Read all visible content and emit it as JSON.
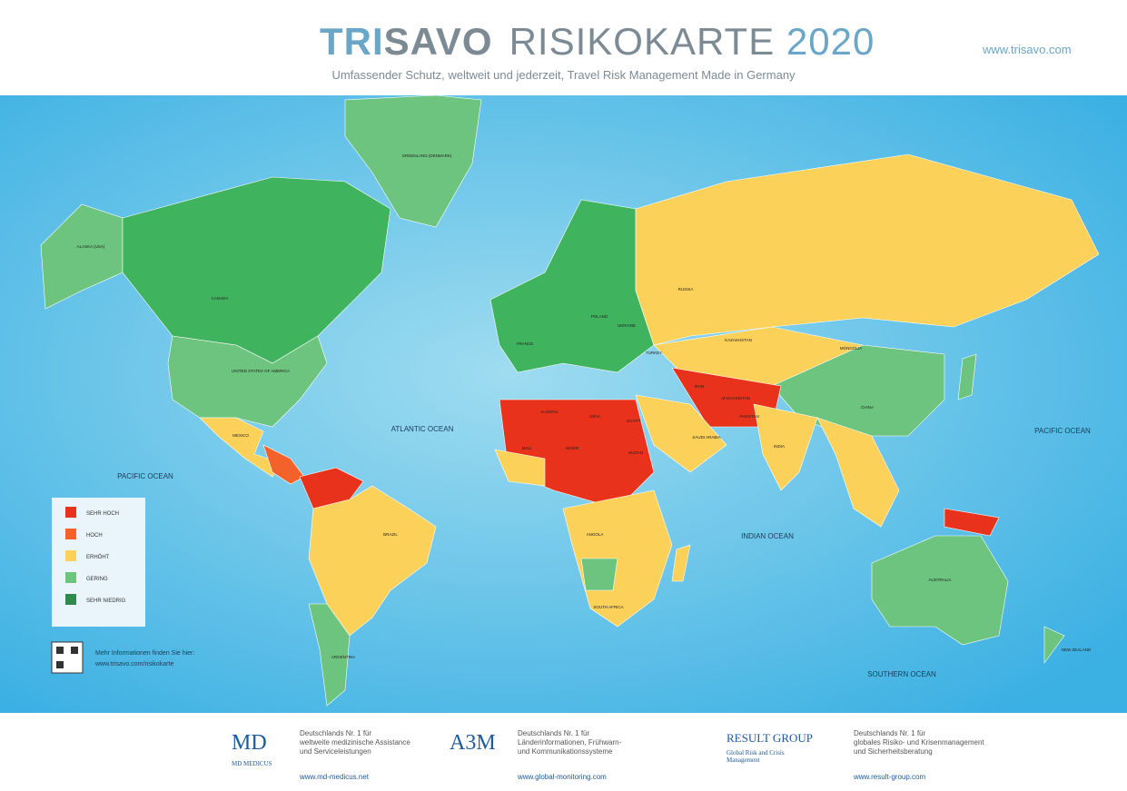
{
  "header": {
    "brand_a": "TRI",
    "brand_b": "SAVO",
    "title": "RISIKOKARTE",
    "year": "2020",
    "subtitle": "Umfassender Schutz, weltweit und jederzeit, Travel Risk Management Made in Germany",
    "url": "www.trisavo.com"
  },
  "map": {
    "oceans": [
      "ATLANTIC OCEAN",
      "PACIFIC OCEAN",
      "PACIFIC OCEAN",
      "INDIAN OCEAN",
      "SOUTHERN OCEAN"
    ],
    "labels": [
      "GREENLAND (DENMARK)",
      "ALASKA (USA)",
      "CANADA",
      "UNITED STATES OF AMERICA",
      "MEXICO",
      "BRAZIL",
      "ARGENTINA",
      "RUSSIA",
      "KAZAKHSTAN",
      "MONGOLIA",
      "CHINA",
      "INDIA",
      "AFGHANISTAN",
      "PAKISTAN",
      "IRAN",
      "SAUDI ARABIA",
      "ALGERIA",
      "LIBYA",
      "EGYPT",
      "MALI",
      "NIGER",
      "SUDAN",
      "ANGOLA",
      "SOUTH AFRICA",
      "AUSTRALIA",
      "NEW ZEALAND",
      "FRANCE",
      "POLAND",
      "UKRAINE",
      "TURKEY"
    ]
  },
  "legend": {
    "items": [
      {
        "label": "SEHR HOCH",
        "color": "#e8321b"
      },
      {
        "label": "HOCH",
        "color": "#f2622a"
      },
      {
        "label": "ERHÖHT",
        "color": "#fcd159"
      },
      {
        "label": "GERING",
        "color": "#6cc47e"
      },
      {
        "label": "SEHR NIEDRIG",
        "color": "#2e8b4c"
      }
    ]
  },
  "info": {
    "text": "Mehr Informationen finden Sie hier:",
    "url": "www.trisavo.com/risikokarte"
  },
  "footer": {
    "partners": [
      {
        "logo": "MD",
        "name": "MD MEDICUS",
        "lines": [
          "Deutschlands Nr. 1 für",
          "weltweite medizinische Assistance",
          "und Serviceleistungen"
        ],
        "url": "www.md-medicus.net"
      },
      {
        "logo": "A3M",
        "name": "",
        "lines": [
          "Deutschlands Nr. 1 für",
          "Länderinformationen, Frühwarn-",
          "und Kommunikationssysteme"
        ],
        "url": "www.global-monitoring.com"
      },
      {
        "logo": "RESULT GROUP",
        "name": "Global Risk and Crisis Management",
        "lines": [
          "Deutschlands Nr. 1 für",
          "globales Risiko- und Krisenmanagement",
          "und Sicherheitsberatung"
        ],
        "url": "www.result-group.com"
      }
    ]
  }
}
